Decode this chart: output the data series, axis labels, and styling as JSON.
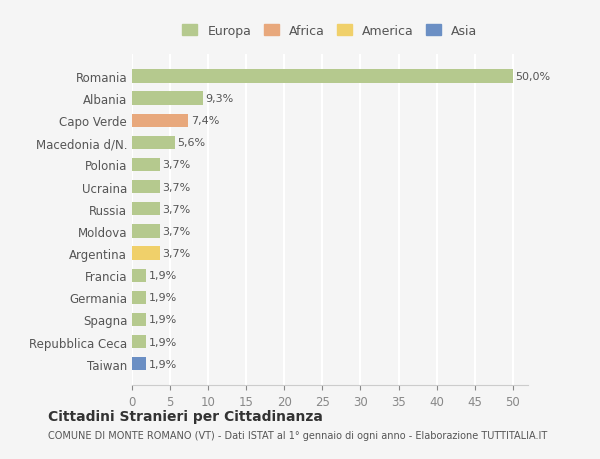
{
  "categories": [
    "Romania",
    "Albania",
    "Capo Verde",
    "Macedonia d/N.",
    "Polonia",
    "Ucraina",
    "Russia",
    "Moldova",
    "Argentina",
    "Francia",
    "Germania",
    "Spagna",
    "Repubblica Ceca",
    "Taiwan"
  ],
  "values": [
    50.0,
    9.3,
    7.4,
    5.6,
    3.7,
    3.7,
    3.7,
    3.7,
    3.7,
    1.9,
    1.9,
    1.9,
    1.9,
    1.9
  ],
  "colors": [
    "#b5c98e",
    "#b5c98e",
    "#e8a87c",
    "#b5c98e",
    "#b5c98e",
    "#b5c98e",
    "#b5c98e",
    "#b5c98e",
    "#f0d06a",
    "#b5c98e",
    "#b5c98e",
    "#b5c98e",
    "#b5c98e",
    "#6b8fc4"
  ],
  "labels": [
    "50,0%",
    "9,3%",
    "7,4%",
    "5,6%",
    "3,7%",
    "3,7%",
    "3,7%",
    "3,7%",
    "3,7%",
    "1,9%",
    "1,9%",
    "1,9%",
    "1,9%",
    "1,9%"
  ],
  "legend": {
    "Europa": "#b5c98e",
    "Africa": "#e8a87c",
    "America": "#f0d06a",
    "Asia": "#6b8fc4"
  },
  "xlim": [
    0,
    52
  ],
  "xticks": [
    0,
    5,
    10,
    15,
    20,
    25,
    30,
    35,
    40,
    45,
    50
  ],
  "title": "Cittadini Stranieri per Cittadinanza",
  "subtitle": "COMUNE DI MONTE ROMANO (VT) - Dati ISTAT al 1° gennaio di ogni anno - Elaborazione TUTTITALIA.IT",
  "bg_color": "#f5f5f5",
  "grid_color": "#ffffff",
  "bar_height": 0.6
}
